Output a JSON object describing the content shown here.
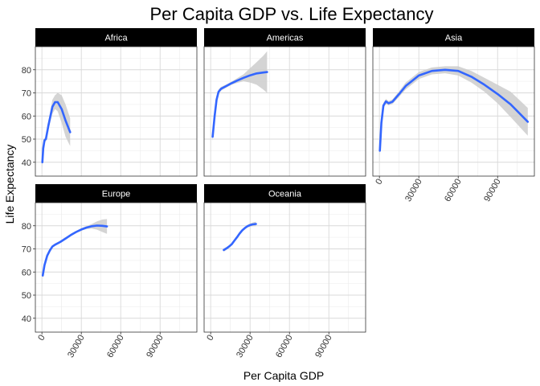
{
  "chart_data": {
    "type": "line",
    "title": "Per Capita GDP vs. Life Expectancy",
    "xlabel": "Per Capita GDP",
    "ylabel": "Life Expectancy",
    "xlim": [
      -5000,
      118000
    ],
    "ylim": [
      34,
      90
    ],
    "x_ticks": [
      0,
      30000,
      60000,
      90000
    ],
    "y_ticks": [
      40,
      50,
      60,
      70,
      80
    ],
    "grid": true,
    "colors": {
      "line": "#3366ff",
      "ribbon": "#cccccc",
      "strip": "#000000"
    },
    "facets": [
      {
        "label": "Africa",
        "x": [
          300,
          1000,
          2000,
          3000,
          5000,
          8000,
          10000,
          12000,
          15000,
          18000,
          21500
        ],
        "y": [
          40,
          46,
          49.5,
          50,
          56,
          64,
          66,
          66,
          63,
          58,
          53
        ],
        "lower": [
          37.5,
          44,
          48.5,
          49,
          54.5,
          61,
          63,
          62,
          57,
          51,
          47
        ],
        "upper": [
          42.5,
          48,
          50.5,
          51,
          57.5,
          67,
          69,
          70,
          69,
          65,
          59
        ]
      },
      {
        "label": "Americas",
        "x": [
          1500,
          3000,
          4500,
          6000,
          8000,
          12000,
          16000,
          20000,
          25000,
          30000,
          35000,
          40000,
          43000
        ],
        "y": [
          51,
          60,
          67,
          70.5,
          71.8,
          73,
          74.2,
          75.3,
          76.5,
          77.6,
          78.4,
          78.8,
          79
        ],
        "lower": [
          49,
          58.5,
          65.5,
          69.5,
          71,
          72.3,
          73.5,
          74.3,
          75,
          74.5,
          73.5,
          71.5,
          70
        ],
        "upper": [
          53,
          61.5,
          68.5,
          71.5,
          72.6,
          73.7,
          74.9,
          76.3,
          78,
          80.7,
          83.3,
          86,
          88
        ]
      },
      {
        "label": "Asia",
        "x": [
          300,
          1500,
          3000,
          5000,
          7000,
          10000,
          15000,
          20000,
          30000,
          40000,
          50000,
          60000,
          70000,
          80000,
          90000,
          100000,
          113000
        ],
        "y": [
          45,
          57,
          64.5,
          66.3,
          65.5,
          66.2,
          69.5,
          73,
          77.5,
          79.5,
          80,
          79.5,
          77,
          73.5,
          69.5,
          65,
          57.5
        ],
        "lower": [
          43,
          55.5,
          63.3,
          65.2,
          64.6,
          65.2,
          68.3,
          71.5,
          76,
          78,
          78.5,
          77.5,
          74.5,
          70.5,
          65.5,
          59.5,
          51.5
        ],
        "upper": [
          47,
          58.5,
          65.7,
          67.4,
          66.4,
          67.2,
          70.7,
          74.5,
          79,
          81,
          81.5,
          81.5,
          79.5,
          76.5,
          73.5,
          70.5,
          63.5
        ]
      },
      {
        "label": "Europe",
        "x": [
          600,
          2000,
          4000,
          6000,
          8000,
          10000,
          14000,
          18000,
          22000,
          26000,
          30000,
          34000,
          38000,
          42000,
          46000,
          49500
        ],
        "y": [
          58.5,
          63,
          67,
          69.3,
          71,
          71.8,
          73,
          74.5,
          76,
          77.3,
          78.4,
          79.2,
          79.8,
          80.1,
          80,
          79.7
        ],
        "lower": [
          57,
          62,
          66.3,
          68.7,
          70.5,
          71.3,
          72.5,
          74,
          75.5,
          76.8,
          77.9,
          78.6,
          78.8,
          78.3,
          77.3,
          76.5
        ],
        "upper": [
          60,
          64,
          67.7,
          69.9,
          71.5,
          72.3,
          73.5,
          75,
          76.5,
          77.8,
          78.9,
          79.8,
          80.8,
          81.9,
          82.7,
          82.9
        ]
      },
      {
        "label": "Oceania",
        "x": [
          10000,
          12000,
          14000,
          16000,
          18000,
          20000,
          22000,
          24000,
          26000,
          28000,
          30000,
          32000,
          34500
        ],
        "y": [
          69.5,
          70.2,
          71,
          72,
          73.5,
          75,
          76.6,
          78,
          79,
          79.8,
          80.3,
          80.6,
          80.8
        ],
        "lower": [
          68.8,
          69.6,
          70.5,
          71.5,
          73,
          74.5,
          76.1,
          77.5,
          78.5,
          79.2,
          79.6,
          79.8,
          79.8
        ],
        "upper": [
          70.2,
          70.8,
          71.5,
          72.5,
          74,
          75.5,
          77.1,
          78.5,
          79.5,
          80.4,
          81,
          81.4,
          81.8
        ]
      }
    ]
  }
}
